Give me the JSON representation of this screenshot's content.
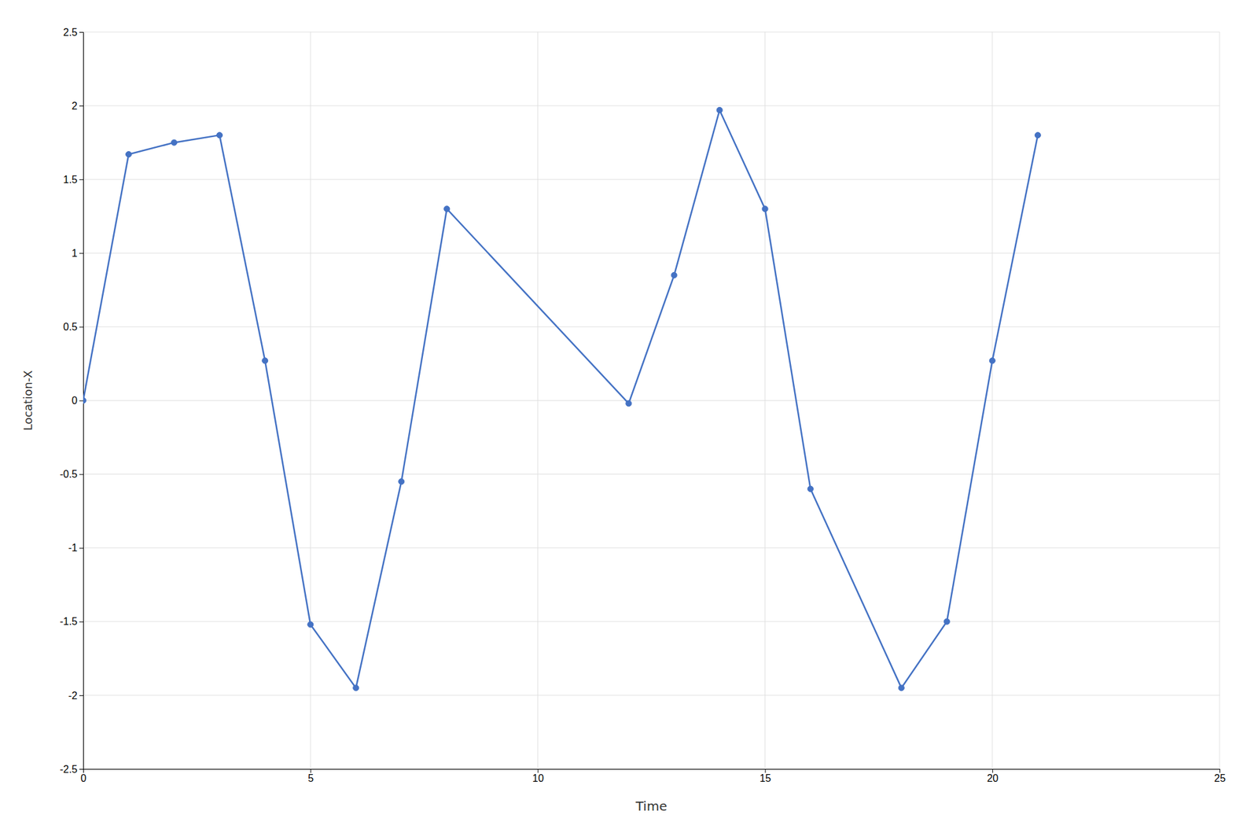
{
  "chart_data": {
    "type": "line",
    "x": [
      0,
      1,
      2,
      3,
      4,
      5,
      6,
      7,
      8,
      12,
      13,
      14,
      15,
      16,
      18,
      19,
      20,
      21
    ],
    "values": [
      0.0,
      1.67,
      1.75,
      1.8,
      0.27,
      -1.52,
      -1.95,
      -0.55,
      1.3,
      -0.02,
      0.85,
      1.97,
      1.3,
      -0.6,
      -1.95,
      -1.5,
      0.27,
      1.8
    ],
    "xlabel": "Time",
    "ylabel": "Location-X",
    "xlim": [
      0,
      25
    ],
    "ylim": [
      -2.5,
      2.5
    ],
    "xticks": [
      0,
      5,
      10,
      15,
      20,
      25
    ],
    "yticks": [
      -2.5,
      -2,
      -1.5,
      -1,
      -0.5,
      0,
      0.5,
      1,
      1.5,
      2,
      2.5
    ],
    "color": "#4472C4",
    "marker": "circle",
    "grid": true
  }
}
